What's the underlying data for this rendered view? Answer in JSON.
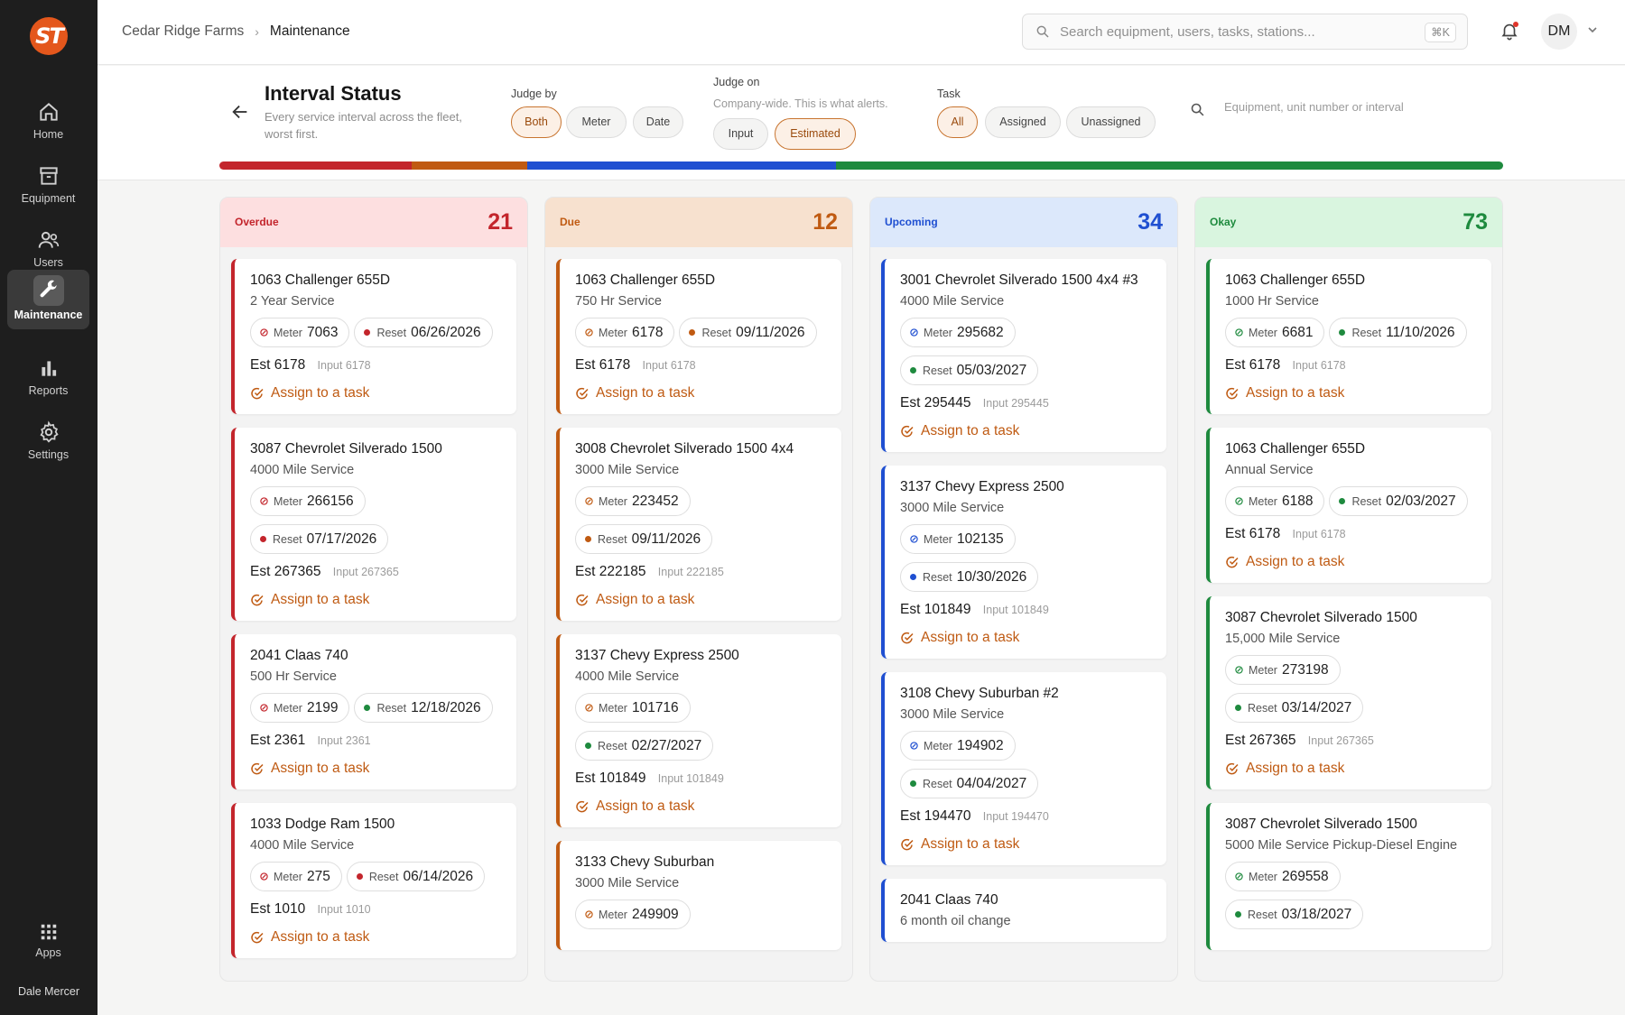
{
  "app": {
    "logo_text": "ST",
    "user_name": "Dale Mercer",
    "avatar_initials": "DM"
  },
  "nav": [
    {
      "key": "home",
      "label": "Home",
      "icon": "home-icon"
    },
    {
      "key": "equipment",
      "label": "Equipment",
      "icon": "archive-icon"
    },
    {
      "key": "users",
      "label": "Users",
      "icon": "users-icon"
    },
    {
      "key": "maintenance",
      "label": "Maintenance",
      "icon": "wrench-icon",
      "active": true
    },
    {
      "key": "reports",
      "label": "Reports",
      "icon": "bar-chart-icon"
    },
    {
      "key": "settings",
      "label": "Settings",
      "icon": "gear-icon"
    }
  ],
  "apps_label": "Apps",
  "breadcrumb": {
    "org": "Cedar Ridge Farms",
    "current": "Maintenance"
  },
  "search": {
    "placeholder": "Search equipment, users, tasks, stations...",
    "shortcut": "⌘K"
  },
  "header": {
    "title": "Interval Status",
    "subtitle": "Every service interval across the fleet, worst first.",
    "judge_by": {
      "label": "Judge by",
      "options": [
        "Both",
        "Meter",
        "Date"
      ],
      "selected": "Both"
    },
    "judge_on": {
      "label": "Judge on",
      "note": "Company-wide. This is what alerts.",
      "options": [
        "Input",
        "Estimated"
      ],
      "selected": "Estimated"
    },
    "task": {
      "label": "Task",
      "options": [
        "All",
        "Assigned",
        "Unassigned"
      ],
      "selected": "All"
    },
    "filter_placeholder": "Equipment, unit number or interval"
  },
  "colors": {
    "overdue": "#c3252c",
    "due": "#c05a12",
    "upcoming": "#1f4fd1",
    "okay": "#1e8a3e",
    "accent": "#bf5a12"
  },
  "labels": {
    "meter": "Meter",
    "reset": "Reset",
    "est": "Est",
    "input": "Input",
    "assign": "Assign to a task"
  },
  "columns": [
    {
      "key": "overdue",
      "title": "Overdue",
      "count": "21",
      "cards": [
        {
          "unit": "1063 Challenger 655D",
          "service": "2 Year Service",
          "meter": "7063",
          "reset": "06/26/2026",
          "est": "6178",
          "input": "6178"
        },
        {
          "unit": "3087 Chevrolet Silverado 1500",
          "service": "4000 Mile Service",
          "meter": "266156",
          "reset": "07/17/2026",
          "est": "267365",
          "input": "267365"
        },
        {
          "unit": "2041 Claas 740",
          "service": "500 Hr Service",
          "meter": "2199",
          "reset": "12/18/2026",
          "reset_status": "okay",
          "est": "2361",
          "input": "2361"
        },
        {
          "unit": "1033 Dodge Ram 1500",
          "service": "4000 Mile Service",
          "meter": "275",
          "reset": "06/14/2026",
          "est": "1010",
          "input": "1010"
        }
      ]
    },
    {
      "key": "due",
      "title": "Due",
      "count": "12",
      "cards": [
        {
          "unit": "1063 Challenger 655D",
          "service": "750 Hr Service",
          "meter": "6178",
          "reset": "09/11/2026",
          "est": "6178",
          "input": "6178"
        },
        {
          "unit": "3008 Chevrolet Silverado 1500 4x4",
          "service": "3000 Mile Service",
          "meter": "223452",
          "reset": "09/11/2026",
          "est": "222185",
          "input": "222185"
        },
        {
          "unit": "3137 Chevy Express 2500",
          "service": "4000 Mile Service",
          "meter": "101716",
          "reset": "02/27/2027",
          "reset_status": "okay",
          "est": "101849",
          "input": "101849"
        },
        {
          "unit": "3133 Chevy Suburban",
          "service": "3000 Mile Service",
          "meter": "249909",
          "reset": "",
          "est": "",
          "input": ""
        }
      ]
    },
    {
      "key": "upcoming",
      "title": "Upcoming",
      "count": "34",
      "cards": [
        {
          "unit": "3001 Chevrolet Silverado 1500 4x4 #3",
          "service": "4000 Mile Service",
          "meter": "295682",
          "reset": "05/03/2027",
          "reset_status": "okay",
          "est": "295445",
          "input": "295445"
        },
        {
          "unit": "3137 Chevy Express 2500",
          "service": "3000 Mile Service",
          "meter": "102135",
          "reset": "10/30/2026",
          "est": "101849",
          "input": "101849"
        },
        {
          "unit": "3108 Chevy Suburban #2",
          "service": "3000 Mile Service",
          "meter": "194902",
          "reset": "04/04/2027",
          "reset_status": "okay",
          "est": "194470",
          "input": "194470"
        },
        {
          "unit": "2041 Claas 740",
          "service": "6 month oil change",
          "meter": "",
          "reset": "",
          "est": "",
          "input": ""
        }
      ]
    },
    {
      "key": "okay",
      "title": "Okay",
      "count": "73",
      "cards": [
        {
          "unit": "1063 Challenger 655D",
          "service": "1000 Hr Service",
          "meter": "6681",
          "reset": "11/10/2026",
          "est": "6178",
          "input": "6178"
        },
        {
          "unit": "1063 Challenger 655D",
          "service": "Annual Service",
          "meter": "6188",
          "reset": "02/03/2027",
          "est": "6178",
          "input": "6178"
        },
        {
          "unit": "3087 Chevrolet Silverado 1500",
          "service": "15,000 Mile Service",
          "meter": "273198",
          "reset": "03/14/2027",
          "est": "267365",
          "input": "267365"
        },
        {
          "unit": "3087 Chevrolet Silverado 1500",
          "service": "5000 Mile Service Pickup-Diesel Engine",
          "meter": "269558",
          "reset": "03/18/2027",
          "est": "",
          "input": ""
        }
      ]
    }
  ],
  "status_share": {
    "overdue": 0.15,
    "due": 0.09,
    "upcoming": 0.24,
    "okay": 0.52
  }
}
